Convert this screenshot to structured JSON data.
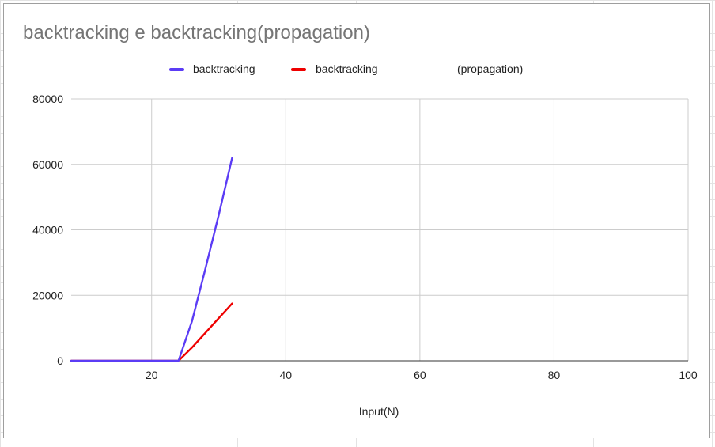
{
  "chart_data": {
    "type": "line",
    "title": "backtracking e backtracking(propagation)",
    "xlabel": "Input(N)",
    "ylabel": "",
    "xlim": [
      8,
      100
    ],
    "ylim": [
      0,
      80000
    ],
    "xticks": [
      20,
      40,
      60,
      80,
      100
    ],
    "yticks": [
      0,
      20000,
      40000,
      60000,
      80000
    ],
    "grid": true,
    "legend_position": "top",
    "legend": [
      {
        "label": "backtracking",
        "color": "#5b3cf5"
      },
      {
        "label_parts": [
          "backtracking",
          "(propagation)"
        ],
        "color": "#ee0000"
      }
    ],
    "series": [
      {
        "name": "backtracking",
        "color": "#5b3cf5",
        "x": [
          8,
          10,
          12,
          14,
          16,
          17,
          18,
          20,
          22,
          24,
          26,
          28,
          30,
          32
        ],
        "y": [
          0,
          0,
          0,
          0,
          0,
          0,
          0,
          0,
          0,
          0,
          12000,
          28000,
          44500,
          62000
        ]
      },
      {
        "name": "backtracking (propagation)",
        "color": "#ee0000",
        "x": [
          8,
          10,
          12,
          14,
          16,
          17,
          18,
          20,
          22,
          24,
          26,
          28,
          30,
          32
        ],
        "y": [
          0,
          0,
          0,
          0,
          0,
          0,
          0,
          0,
          0,
          0,
          4000,
          8500,
          13000,
          17500
        ]
      }
    ]
  }
}
